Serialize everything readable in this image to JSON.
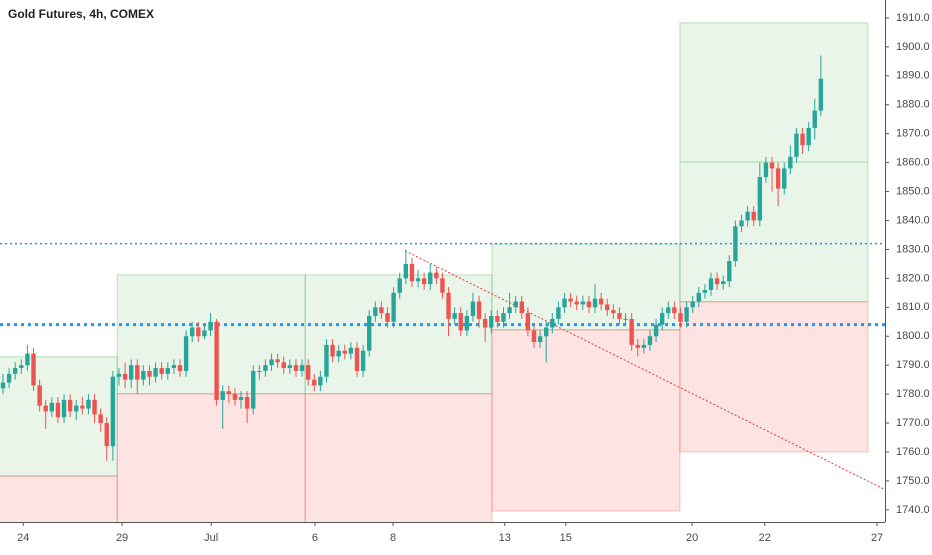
{
  "chart_data": {
    "type": "candlestick",
    "title": "Gold Futures, 4h, COMEX",
    "xlim": [
      0,
      145
    ],
    "xticks": [
      {
        "value": 3.8,
        "label": "24"
      },
      {
        "value": 20,
        "label": "29"
      },
      {
        "value": 34.6,
        "label": "Jul"
      },
      {
        "value": 51.6,
        "label": "6"
      },
      {
        "value": 64.4,
        "label": "8"
      },
      {
        "value": 82.7,
        "label": "13"
      },
      {
        "value": 92.7,
        "label": "15"
      },
      {
        "value": 113.4,
        "label": "20"
      },
      {
        "value": 125.3,
        "label": "22"
      },
      {
        "value": 143.7,
        "label": "27"
      }
    ],
    "ylim": [
      1735.8,
      1916.2
    ],
    "yticks": [
      {
        "value": 1740,
        "label": "1740.0"
      },
      {
        "value": 1750,
        "label": "1750.0"
      },
      {
        "value": 1760,
        "label": "1760.0"
      },
      {
        "value": 1770,
        "label": "1770.0"
      },
      {
        "value": 1780,
        "label": "1780.0"
      },
      {
        "value": 1790,
        "label": "1790.0"
      },
      {
        "value": 1800,
        "label": "1800.0"
      },
      {
        "value": 1810,
        "label": "1810.0"
      },
      {
        "value": 1820,
        "label": "1820.0"
      },
      {
        "value": 1830,
        "label": "1830.0"
      },
      {
        "value": 1840,
        "label": "1840.0"
      },
      {
        "value": 1850,
        "label": "1850.0"
      },
      {
        "value": 1860,
        "label": "1860.0"
      },
      {
        "value": 1870,
        "label": "1870.0"
      },
      {
        "value": 1880,
        "label": "1880.0"
      },
      {
        "value": 1890,
        "label": "1890.0"
      },
      {
        "value": 1900,
        "label": "1900.0"
      },
      {
        "value": 1910,
        "label": "1910.0"
      }
    ],
    "up_color": "#26a69a",
    "down_color": "#ef5350",
    "open": [
      1782,
      1784,
      1787,
      1789,
      1790,
      1794,
      1783,
      1776,
      1774,
      1777,
      1772,
      1778,
      1774,
      1776,
      1775,
      1778,
      1773,
      1770,
      1762,
      1786,
      1787,
      1785,
      1790,
      1785,
      1788,
      1786,
      1789,
      1787,
      1789,
      1790,
      1788,
      1800,
      1803,
      1800,
      1802,
      1805,
      1778,
      1781,
      1780,
      1778,
      1779,
      1775,
      1788,
      1788,
      1790,
      1792,
      1791,
      1789,
      1790,
      1788,
      1790,
      1785,
      1783,
      1786,
      1797,
      1793,
      1795,
      1794,
      1796,
      1788,
      1795,
      1807,
      1810,
      1808,
      1805,
      1815,
      1820,
      1825,
      1819,
      1820,
      1818,
      1822,
      1820,
      1815,
      1806,
      1808,
      1802,
      1807,
      1812,
      1806,
      1803,
      1807,
      1805,
      1808,
      1810,
      1812,
      1808,
      1802,
      1798,
      1800,
      1803,
      1806,
      1810,
      1813,
      1812,
      1811,
      1812,
      1810,
      1813,
      1811,
      1809,
      1808,
      1806,
      1806,
      1797,
      1796,
      1797,
      1800,
      1804,
      1808,
      1810,
      1808,
      1805,
      1810,
      1812,
      1815,
      1816,
      1820,
      1818,
      1819,
      1826,
      1838,
      1840,
      1843,
      1840,
      1855,
      1860,
      1858,
      1851,
      1858,
      1862,
      1870,
      1866,
      1872,
      1878
    ],
    "high": [
      1787,
      1789,
      1791,
      1792,
      1797,
      1796,
      1785,
      1778,
      1779,
      1779,
      1780,
      1780,
      1778,
      1779,
      1780,
      1780,
      1775,
      1772,
      1788,
      1789,
      1791,
      1792,
      1792,
      1790,
      1790,
      1791,
      1791,
      1791,
      1792,
      1792,
      1802,
      1805,
      1805,
      1804,
      1808,
      1806,
      1783,
      1783,
      1782,
      1781,
      1781,
      1790,
      1790,
      1792,
      1794,
      1794,
      1793,
      1792,
      1792,
      1792,
      1792,
      1787,
      1788,
      1799,
      1799,
      1797,
      1797,
      1798,
      1798,
      1797,
      1809,
      1812,
      1812,
      1810,
      1817,
      1822,
      1830,
      1827,
      1823,
      1822,
      1825,
      1824,
      1822,
      1817,
      1810,
      1810,
      1809,
      1815,
      1814,
      1808,
      1809,
      1809,
      1810,
      1815,
      1814,
      1814,
      1810,
      1804,
      1802,
      1805,
      1808,
      1812,
      1815,
      1815,
      1814,
      1814,
      1814,
      1818,
      1815,
      1813,
      1811,
      1810,
      1808,
      1808,
      1799,
      1799,
      1802,
      1806,
      1810,
      1812,
      1812,
      1810,
      1812,
      1814,
      1817,
      1818,
      1822,
      1822,
      1821,
      1828,
      1840,
      1842,
      1845,
      1845,
      1860,
      1862,
      1862,
      1860,
      1860,
      1866,
      1872,
      1872,
      1874,
      1882,
      1897
    ],
    "low": [
      1780,
      1782,
      1785,
      1787,
      1788,
      1781,
      1774,
      1768,
      1772,
      1770,
      1770,
      1772,
      1771,
      1773,
      1773,
      1770,
      1767,
      1757,
      1757,
      1783,
      1782,
      1782,
      1780,
      1783,
      1783,
      1784,
      1785,
      1785,
      1787,
      1786,
      1786,
      1798,
      1798,
      1799,
      1800,
      1776,
      1768,
      1777,
      1776,
      1775,
      1770,
      1773,
      1785,
      1786,
      1788,
      1789,
      1787,
      1787,
      1786,
      1786,
      1783,
      1781,
      1781,
      1784,
      1791,
      1791,
      1792,
      1792,
      1786,
      1786,
      1793,
      1805,
      1806,
      1803,
      1803,
      1813,
      1818,
      1817,
      1817,
      1816,
      1816,
      1818,
      1813,
      1800,
      1804,
      1800,
      1800,
      1805,
      1803,
      1798,
      1801,
      1803,
      1803,
      1806,
      1808,
      1806,
      1800,
      1796,
      1796,
      1791,
      1801,
      1804,
      1808,
      1810,
      1809,
      1809,
      1808,
      1808,
      1809,
      1807,
      1806,
      1804,
      1804,
      1795,
      1793,
      1794,
      1795,
      1798,
      1802,
      1806,
      1806,
      1803,
      1803,
      1808,
      1810,
      1813,
      1814,
      1816,
      1816,
      1817,
      1824,
      1836,
      1838,
      1838,
      1838,
      1853,
      1850,
      1845,
      1849,
      1856,
      1860,
      1863,
      1864,
      1868,
      1876
    ],
    "close": [
      1784,
      1787,
      1789,
      1790,
      1794,
      1783,
      1776,
      1774,
      1777,
      1772,
      1778,
      1774,
      1776,
      1775,
      1778,
      1773,
      1770,
      1762,
      1786,
      1787,
      1785,
      1790,
      1785,
      1788,
      1786,
      1789,
      1787,
      1789,
      1790,
      1788,
      1800,
      1803,
      1800,
      1802,
      1805,
      1778,
      1781,
      1780,
      1778,
      1779,
      1775,
      1788,
      1788,
      1790,
      1792,
      1791,
      1789,
      1790,
      1788,
      1790,
      1785,
      1783,
      1786,
      1797,
      1793,
      1795,
      1794,
      1796,
      1788,
      1795,
      1807,
      1810,
      1808,
      1805,
      1815,
      1820,
      1825,
      1819,
      1820,
      1818,
      1822,
      1820,
      1815,
      1806,
      1808,
      1802,
      1807,
      1812,
      1806,
      1803,
      1807,
      1805,
      1808,
      1810,
      1812,
      1808,
      1802,
      1798,
      1800,
      1803,
      1806,
      1810,
      1813,
      1812,
      1811,
      1812,
      1810,
      1813,
      1811,
      1809,
      1808,
      1806,
      1806,
      1797,
      1796,
      1797,
      1800,
      1804,
      1808,
      1810,
      1808,
      1805,
      1810,
      1812,
      1815,
      1816,
      1820,
      1818,
      1819,
      1826,
      1838,
      1840,
      1843,
      1840,
      1855,
      1860,
      1858,
      1851,
      1858,
      1862,
      1870,
      1866,
      1872,
      1878,
      1889
    ],
    "zones": [
      {
        "x": [
          -1,
          19.2
        ],
        "top": 1792.9,
        "split": 1751.7,
        "bottom": 1730
      },
      {
        "x": [
          19.2,
          50
        ],
        "top": 1821.2,
        "split": 1780.1,
        "bottom": 1730
      },
      {
        "x": [
          50,
          80.6
        ],
        "top": 1821.2,
        "split": 1780.1,
        "bottom": 1730
      },
      {
        "x": [
          80.6,
          111.4
        ],
        "top": 1831.9,
        "split": 1802.2,
        "bottom": 1739.6
      },
      {
        "x": [
          111.4,
          142.2
        ],
        "top": 1908.3,
        "mid": 1860.2,
        "split": 1811.9,
        "bottom": 1760
      }
    ],
    "zone_up_color": "#4caf50",
    "zone_down_color": "#f44336",
    "levels": [
      {
        "value": 1832,
        "color": "#2196f3",
        "width": 1.5
      },
      {
        "value": 1804,
        "color": "#2196f3",
        "width": 3
      }
    ],
    "trendline": {
      "x": [
        66.4,
        145
      ],
      "y": [
        1829.5,
        1747
      ],
      "color": "#e53935"
    }
  }
}
